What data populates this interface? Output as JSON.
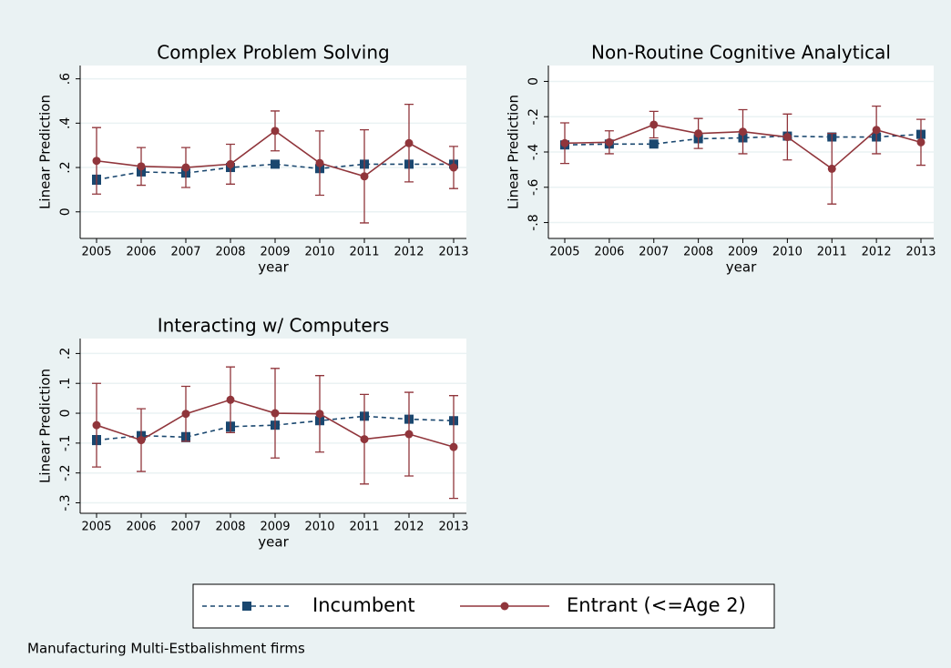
{
  "chart_data": [
    {
      "type": "line",
      "title": "Complex Problem Solving",
      "xlabel": "year",
      "ylabel": "Linear Prediction",
      "categories": [
        "2005",
        "2006",
        "2007",
        "2008",
        "2009",
        "2010",
        "2011",
        "2012",
        "2013"
      ],
      "ylim": [
        -0.12,
        0.66
      ],
      "yticks": [
        {
          "value": 0,
          "label": "0"
        },
        {
          "value": 0.2,
          "label": ".2"
        },
        {
          "value": 0.4,
          "label": ".4"
        },
        {
          "value": 0.6,
          "label": ".6"
        }
      ],
      "grid": true,
      "series": [
        {
          "name": "Incumbent",
          "color": "#1a476f",
          "marker": "square",
          "dash": true,
          "values": [
            0.145,
            0.18,
            0.175,
            0.2,
            0.215,
            0.195,
            0.215,
            0.215,
            0.215
          ],
          "errors": [
            0.02,
            0.01,
            0.01,
            0.01,
            0.01,
            0.01,
            0.01,
            0.01,
            0.01
          ]
        },
        {
          "name": "Entrant (<=Age 2)",
          "color": "#90353b",
          "marker": "circle",
          "dash": false,
          "values": [
            0.23,
            0.205,
            0.2,
            0.215,
            0.365,
            0.22,
            0.16,
            0.31,
            0.2
          ],
          "errors": [
            0.15,
            0.085,
            0.09,
            0.09,
            0.09,
            0.145,
            0.21,
            0.175,
            0.095
          ]
        }
      ]
    },
    {
      "type": "line",
      "title": "Non-Routine Cognitive Analytical",
      "xlabel": "year",
      "ylabel": "Linear Prediction",
      "categories": [
        "2005",
        "2006",
        "2007",
        "2008",
        "2009",
        "2010",
        "2011",
        "2012",
        "2013"
      ],
      "ylim": [
        -0.89,
        0.09
      ],
      "yticks": [
        {
          "value": -0.8,
          "label": "-.8"
        },
        {
          "value": -0.6,
          "label": "-.6"
        },
        {
          "value": -0.4,
          "label": "-.4"
        },
        {
          "value": -0.2,
          "label": "-.2"
        },
        {
          "value": 0,
          "label": "0"
        }
      ],
      "grid": true,
      "series": [
        {
          "color": "#1a476f",
          "marker": "square",
          "dash": true,
          "values": [
            -0.36,
            -0.355,
            -0.355,
            -0.325,
            -0.32,
            -0.31,
            -0.315,
            -0.315,
            -0.3
          ],
          "errors": [
            0.01,
            0.01,
            0.01,
            0.01,
            0.01,
            0.01,
            0.01,
            0.01,
            0.01
          ]
        },
        {
          "color": "#90353b",
          "marker": "circle",
          "dash": false,
          "values": [
            -0.35,
            -0.345,
            -0.245,
            -0.295,
            -0.285,
            -0.315,
            -0.495,
            -0.275,
            -0.345
          ],
          "errors": [
            0.115,
            0.065,
            0.075,
            0.085,
            0.125,
            0.13,
            0.2,
            0.135,
            0.13
          ]
        }
      ]
    },
    {
      "type": "line",
      "title": "Interacting w/ Computers",
      "xlabel": "year",
      "ylabel": "Linear Prediction",
      "categories": [
        "2005",
        "2006",
        "2007",
        "2008",
        "2009",
        "2010",
        "2011",
        "2012",
        "2013"
      ],
      "ylim": [
        -0.335,
        0.25
      ],
      "yticks": [
        {
          "value": -0.3,
          "label": "-.3"
        },
        {
          "value": -0.2,
          "label": "-.2"
        },
        {
          "value": -0.1,
          "label": "-.1"
        },
        {
          "value": 0,
          "label": "0"
        },
        {
          "value": 0.1,
          "label": ".1"
        },
        {
          "value": 0.2,
          "label": ".2"
        }
      ],
      "grid": true,
      "series": [
        {
          "color": "#1a476f",
          "marker": "square",
          "dash": true,
          "values": [
            -0.09,
            -0.075,
            -0.08,
            -0.045,
            -0.04,
            -0.025,
            -0.01,
            -0.02,
            -0.025
          ],
          "errors": [
            0.015,
            0.01,
            0.015,
            0.015,
            0.01,
            0.01,
            0.01,
            0.01,
            0.01
          ]
        },
        {
          "color": "#90353b",
          "marker": "circle",
          "dash": false,
          "values": [
            -0.04,
            -0.09,
            -0.002,
            0.045,
            0.0,
            -0.002,
            -0.087,
            -0.07,
            -0.113
          ],
          "errors": [
            0.14,
            0.105,
            0.092,
            0.11,
            0.15,
            0.128,
            0.15,
            0.14,
            0.172
          ]
        }
      ]
    }
  ],
  "note": "Manufacturing Multi-Estbalishment firms"
}
